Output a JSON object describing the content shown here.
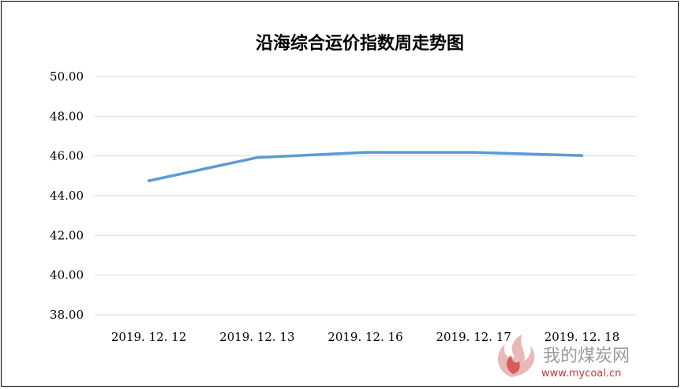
{
  "chart_data": {
    "type": "line",
    "title": "沿海综合运价指数周走势图",
    "xlabel": "",
    "ylabel": "",
    "categories": [
      "2019. 12. 12",
      "2019. 12. 13",
      "2019. 12. 16",
      "2019. 12. 17",
      "2019. 12. 18"
    ],
    "series": [
      {
        "values": [
          44.75,
          45.92,
          46.18,
          46.18,
          46.02
        ],
        "color": "#5b9bd5"
      }
    ],
    "ylim": [
      38,
      50
    ],
    "yticks": [
      "38.00",
      "40.00",
      "42.00",
      "44.00",
      "46.00",
      "48.00",
      "50.00"
    ],
    "grid": true,
    "legend": "none"
  },
  "watermark": {
    "text": "我的煤炭网",
    "url": "www.mycoal.cn"
  }
}
